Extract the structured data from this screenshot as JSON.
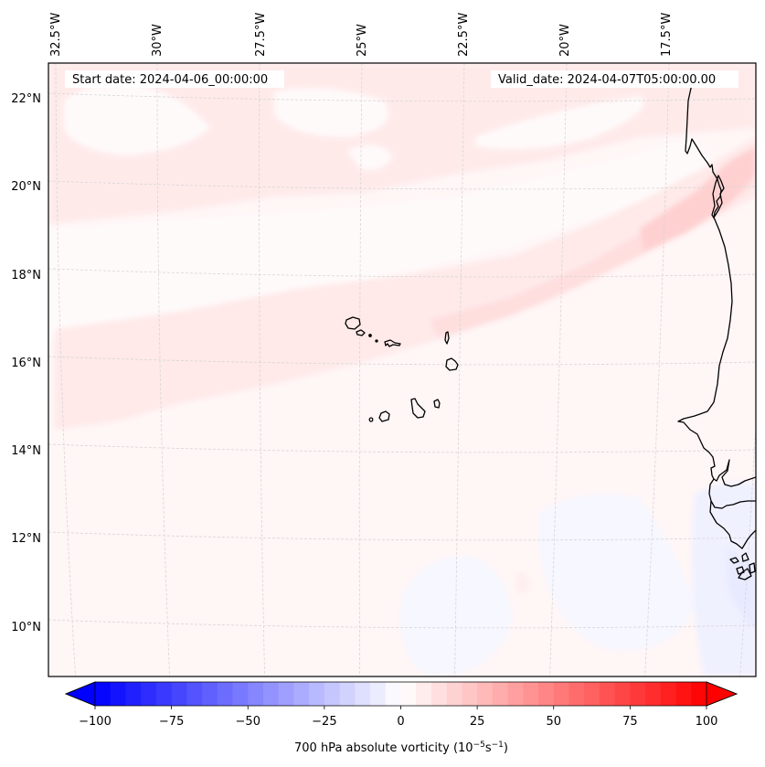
{
  "figure": {
    "start_date_label": "Start date: 2024-04-06_00:00:00",
    "valid_date_label": "Valid_date: 2024-04-07T05:00:00.00"
  },
  "map": {
    "lon_labels": [
      "32.5°W",
      "30°W",
      "27.5°W",
      "25°W",
      "22.5°W",
      "20°W",
      "17.5°W"
    ],
    "lat_labels": [
      "22°N",
      "20°N",
      "18°N",
      "16°N",
      "14°N",
      "12°N",
      "10°N"
    ],
    "field_colors": {
      "background": "#fff6f6",
      "light_pink": "#ffeaea",
      "mid_pink": "#ffdcdc",
      "dark_pink": "#ffcccc",
      "near_white": "#fffbfb",
      "light_blue": "#f5f6ff",
      "blue_tint": "#eceeff"
    },
    "islands": "Cape Verde",
    "coastline": "West Africa (Mauritania, Senegal, Gambia, Guinea-Bissau)"
  },
  "colorbar": {
    "label_main": "700 hPa absolute vorticity (10",
    "label_exp1": "−5",
    "label_mid": "s",
    "label_exp2": "−1",
    "label_end": ")",
    "ticks": [
      "−100",
      "−75",
      "−50",
      "−25",
      "0",
      "25",
      "50",
      "75",
      "100"
    ],
    "vmin": -100,
    "vmax": 100,
    "step": 5,
    "cmap": "bwr",
    "extend": "both"
  },
  "chart_data": {
    "type": "heatmap",
    "title": "700 hPa absolute vorticity",
    "units": "10^-5 s^-1",
    "start_date": "2024-04-06_00:00:00",
    "valid_date": "2024-04-07T05:00:00.00",
    "lon_ticks": [
      -32.5,
      -30,
      -27.5,
      -25,
      -22.5,
      -20,
      -17.5
    ],
    "lat_ticks": [
      22,
      20,
      18,
      16,
      14,
      12,
      10
    ],
    "lon_range": [
      -33,
      -15.5
    ],
    "lat_range": [
      9,
      22.8
    ],
    "color_range": [
      -100,
      100
    ],
    "levels_step": 5,
    "colormap": "bwr",
    "features": [
      {
        "name": "positive vorticity band",
        "value_approx": 15,
        "orientation": "SW-NE from ~16N 33W to ~20N 16W"
      },
      {
        "name": "background",
        "value_approx": 3
      },
      {
        "name": "weak negative area",
        "value_approx": -5,
        "location": "SE, 9-13N 22-16W"
      }
    ]
  }
}
